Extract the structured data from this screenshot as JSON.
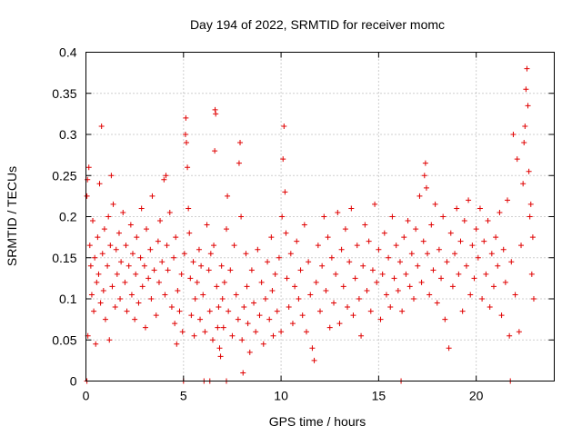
{
  "chart_data": {
    "type": "scatter",
    "title": "Day 194 of 2022, SRMTID for receiver momc",
    "xlabel": "GPS time / hours",
    "ylabel": "SRMTID / TECUs",
    "xlim": [
      0,
      24
    ],
    "ylim": [
      0,
      0.4
    ],
    "xticks": [
      0,
      5,
      10,
      15,
      20
    ],
    "xtick_labels": [
      "0",
      "5",
      "10",
      "15",
      "20"
    ],
    "yticks": [
      0,
      0.05,
      0.1,
      0.15,
      0.2,
      0.25,
      0.3,
      0.35,
      0.4
    ],
    "ytick_labels": [
      "0",
      "0.05",
      "0.1",
      "0.15",
      "0.2",
      "0.25",
      "0.3",
      "0.35",
      "0.4"
    ],
    "grid": true,
    "marker": "plus",
    "color": "#e00000",
    "points": [
      [
        0.05,
        0.225
      ],
      [
        0.08,
        0.245
      ],
      [
        0.1,
        0.055
      ],
      [
        0.15,
        0.26
      ],
      [
        0.2,
        0.165
      ],
      [
        0.25,
        0.14
      ],
      [
        0.3,
        0.105
      ],
      [
        0.35,
        0.195
      ],
      [
        0.4,
        0.085
      ],
      [
        0.45,
        0.15
      ],
      [
        0.5,
        0.045
      ],
      [
        0.55,
        0.12
      ],
      [
        0.6,
        0.175
      ],
      [
        0.65,
        0.13
      ],
      [
        0.7,
        0.24
      ],
      [
        0.75,
        0.095
      ],
      [
        0.8,
        0.31
      ],
      [
        0.85,
        0.155
      ],
      [
        0.9,
        0.11
      ],
      [
        0.95,
        0.185
      ],
      [
        1.0,
        0.075
      ],
      [
        1.1,
        0.14
      ],
      [
        1.15,
        0.2
      ],
      [
        1.2,
        0.05
      ],
      [
        1.25,
        0.165
      ],
      [
        1.3,
        0.25
      ],
      [
        1.35,
        0.115
      ],
      [
        1.4,
        0.215
      ],
      [
        1.5,
        0.09
      ],
      [
        1.55,
        0.16
      ],
      [
        1.6,
        0.13
      ],
      [
        1.7,
        0.18
      ],
      [
        1.75,
        0.1
      ],
      [
        1.8,
        0.145
      ],
      [
        1.9,
        0.205
      ],
      [
        2.0,
        0.12
      ],
      [
        2.05,
        0.165
      ],
      [
        2.1,
        0.085
      ],
      [
        2.2,
        0.14
      ],
      [
        2.3,
        0.19
      ],
      [
        2.35,
        0.105
      ],
      [
        2.4,
        0.155
      ],
      [
        2.5,
        0.075
      ],
      [
        2.55,
        0.13
      ],
      [
        2.6,
        0.175
      ],
      [
        2.7,
        0.095
      ],
      [
        2.8,
        0.15
      ],
      [
        2.85,
        0.21
      ],
      [
        2.9,
        0.115
      ],
      [
        3.0,
        0.14
      ],
      [
        3.05,
        0.065
      ],
      [
        3.1,
        0.185
      ],
      [
        3.2,
        0.125
      ],
      [
        3.3,
        0.16
      ],
      [
        3.35,
        0.1
      ],
      [
        3.4,
        0.225
      ],
      [
        3.5,
        0.135
      ],
      [
        3.6,
        0.08
      ],
      [
        3.7,
        0.17
      ],
      [
        3.75,
        0.12
      ],
      [
        3.8,
        0.195
      ],
      [
        3.9,
        0.145
      ],
      [
        4.0,
        0.245
      ],
      [
        4.05,
        0.105
      ],
      [
        4.1,
        0.25
      ],
      [
        4.15,
        0.165
      ],
      [
        4.2,
        0.135
      ],
      [
        4.3,
        0.205
      ],
      [
        4.4,
        0.09
      ],
      [
        4.5,
        0.15
      ],
      [
        4.55,
        0.07
      ],
      [
        4.6,
        0.175
      ],
      [
        4.65,
        0.045
      ],
      [
        4.7,
        0.11
      ],
      [
        4.8,
        0.085
      ],
      [
        4.9,
        0.13
      ],
      [
        4.95,
        0.06
      ],
      [
        5.05,
        0.155
      ],
      [
        5.1,
        0.3
      ],
      [
        5.12,
        0.32
      ],
      [
        5.15,
        0.29
      ],
      [
        5.2,
        0.26
      ],
      [
        5.25,
        0.21
      ],
      [
        5.3,
        0.18
      ],
      [
        5.35,
        0.125
      ],
      [
        5.4,
        0.08
      ],
      [
        5.5,
        0.145
      ],
      [
        5.55,
        0.055
      ],
      [
        5.6,
        0.1
      ],
      [
        5.7,
        0.12
      ],
      [
        5.8,
        0.16
      ],
      [
        5.85,
        0.075
      ],
      [
        5.9,
        0.14
      ],
      [
        6.0,
        0.105
      ],
      [
        6.1,
        0.06
      ],
      [
        6.2,
        0.19
      ],
      [
        6.3,
        0.135
      ],
      [
        6.35,
        0.085
      ],
      [
        6.4,
        0.155
      ],
      [
        6.5,
        0.05
      ],
      [
        6.55,
        0.165
      ],
      [
        6.6,
        0.28
      ],
      [
        6.62,
        0.33
      ],
      [
        6.65,
        0.325
      ],
      [
        6.7,
        0.115
      ],
      [
        6.75,
        0.065
      ],
      [
        6.8,
        0.09
      ],
      [
        6.85,
        0.04
      ],
      [
        6.9,
        0.03
      ],
      [
        6.95,
        0.14
      ],
      [
        7.0,
        0.1
      ],
      [
        7.05,
        0.065
      ],
      [
        7.1,
        0.12
      ],
      [
        7.2,
        0.185
      ],
      [
        7.25,
        0.225
      ],
      [
        7.3,
        0.085
      ],
      [
        7.4,
        0.135
      ],
      [
        7.5,
        0.055
      ],
      [
        7.6,
        0.165
      ],
      [
        7.7,
        0.105
      ],
      [
        7.8,
        0.075
      ],
      [
        7.85,
        0.265
      ],
      [
        7.9,
        0.29
      ],
      [
        7.95,
        0.2
      ],
      [
        8.0,
        0.05
      ],
      [
        8.05,
        0.01
      ],
      [
        8.1,
        0.09
      ],
      [
        8.2,
        0.155
      ],
      [
        8.25,
        0.115
      ],
      [
        8.3,
        0.07
      ],
      [
        8.4,
        0.035
      ],
      [
        8.5,
        0.135
      ],
      [
        8.6,
        0.095
      ],
      [
        8.7,
        0.06
      ],
      [
        8.8,
        0.16
      ],
      [
        8.9,
        0.08
      ],
      [
        9.0,
        0.12
      ],
      [
        9.1,
        0.045
      ],
      [
        9.2,
        0.1
      ],
      [
        9.3,
        0.145
      ],
      [
        9.4,
        0.075
      ],
      [
        9.5,
        0.175
      ],
      [
        9.55,
        0.11
      ],
      [
        9.6,
        0.055
      ],
      [
        9.7,
        0.13
      ],
      [
        9.8,
        0.085
      ],
      [
        9.9,
        0.15
      ],
      [
        10.0,
        0.06
      ],
      [
        10.05,
        0.2
      ],
      [
        10.1,
        0.27
      ],
      [
        10.15,
        0.31
      ],
      [
        10.2,
        0.23
      ],
      [
        10.25,
        0.18
      ],
      [
        10.3,
        0.125
      ],
      [
        10.4,
        0.09
      ],
      [
        10.5,
        0.155
      ],
      [
        10.6,
        0.07
      ],
      [
        10.7,
        0.115
      ],
      [
        10.8,
        0.17
      ],
      [
        10.9,
        0.1
      ],
      [
        11.0,
        0.135
      ],
      [
        11.1,
        0.08
      ],
      [
        11.2,
        0.19
      ],
      [
        11.3,
        0.06
      ],
      [
        11.4,
        0.145
      ],
      [
        11.5,
        0.105
      ],
      [
        11.6,
        0.04
      ],
      [
        11.7,
        0.025
      ],
      [
        11.8,
        0.12
      ],
      [
        11.9,
        0.165
      ],
      [
        12.0,
        0.085
      ],
      [
        12.1,
        0.14
      ],
      [
        12.2,
        0.2
      ],
      [
        12.3,
        0.11
      ],
      [
        12.4,
        0.175
      ],
      [
        12.5,
        0.065
      ],
      [
        12.6,
        0.15
      ],
      [
        12.7,
        0.095
      ],
      [
        12.8,
        0.13
      ],
      [
        12.9,
        0.205
      ],
      [
        13.0,
        0.07
      ],
      [
        13.1,
        0.16
      ],
      [
        13.2,
        0.115
      ],
      [
        13.3,
        0.185
      ],
      [
        13.4,
        0.09
      ],
      [
        13.5,
        0.145
      ],
      [
        13.6,
        0.21
      ],
      [
        13.7,
        0.08
      ],
      [
        13.8,
        0.125
      ],
      [
        13.9,
        0.165
      ],
      [
        14.0,
        0.1
      ],
      [
        14.1,
        0.055
      ],
      [
        14.2,
        0.14
      ],
      [
        14.3,
        0.19
      ],
      [
        14.4,
        0.11
      ],
      [
        14.5,
        0.17
      ],
      [
        14.6,
        0.085
      ],
      [
        14.7,
        0.135
      ],
      [
        14.8,
        0.215
      ],
      [
        14.9,
        0.12
      ],
      [
        15.0,
        0.16
      ],
      [
        15.1,
        0.075
      ],
      [
        15.2,
        0.13
      ],
      [
        15.3,
        0.18
      ],
      [
        15.4,
        0.105
      ],
      [
        15.5,
        0.15
      ],
      [
        15.6,
        0.09
      ],
      [
        15.7,
        0.2
      ],
      [
        15.8,
        0.125
      ],
      [
        15.9,
        0.165
      ],
      [
        16.0,
        0.11
      ],
      [
        16.1,
        0.145
      ],
      [
        16.2,
        0.085
      ],
      [
        16.3,
        0.175
      ],
      [
        16.4,
        0.13
      ],
      [
        16.5,
        0.195
      ],
      [
        16.6,
        0.115
      ],
      [
        16.7,
        0.155
      ],
      [
        16.8,
        0.1
      ],
      [
        16.9,
        0.185
      ],
      [
        17.0,
        0.14
      ],
      [
        17.1,
        0.225
      ],
      [
        17.2,
        0.12
      ],
      [
        17.3,
        0.17
      ],
      [
        17.35,
        0.25
      ],
      [
        17.4,
        0.265
      ],
      [
        17.45,
        0.235
      ],
      [
        17.5,
        0.155
      ],
      [
        17.6,
        0.105
      ],
      [
        17.7,
        0.19
      ],
      [
        17.8,
        0.135
      ],
      [
        17.9,
        0.215
      ],
      [
        18.0,
        0.095
      ],
      [
        18.1,
        0.16
      ],
      [
        18.2,
        0.125
      ],
      [
        18.3,
        0.2
      ],
      [
        18.4,
        0.075
      ],
      [
        18.5,
        0.145
      ],
      [
        18.6,
        0.04
      ],
      [
        18.7,
        0.18
      ],
      [
        18.8,
        0.115
      ],
      [
        18.9,
        0.155
      ],
      [
        19.0,
        0.21
      ],
      [
        19.1,
        0.13
      ],
      [
        19.2,
        0.17
      ],
      [
        19.3,
        0.085
      ],
      [
        19.4,
        0.195
      ],
      [
        19.5,
        0.14
      ],
      [
        19.6,
        0.22
      ],
      [
        19.7,
        0.105
      ],
      [
        19.8,
        0.165
      ],
      [
        19.9,
        0.125
      ],
      [
        20.0,
        0.185
      ],
      [
        20.1,
        0.15
      ],
      [
        20.2,
        0.21
      ],
      [
        20.3,
        0.1
      ],
      [
        20.4,
        0.17
      ],
      [
        20.5,
        0.13
      ],
      [
        20.6,
        0.195
      ],
      [
        20.7,
        0.09
      ],
      [
        20.8,
        0.155
      ],
      [
        20.9,
        0.115
      ],
      [
        21.0,
        0.175
      ],
      [
        21.1,
        0.14
      ],
      [
        21.2,
        0.205
      ],
      [
        21.3,
        0.08
      ],
      [
        21.4,
        0.16
      ],
      [
        21.5,
        0.12
      ],
      [
        21.6,
        0.22
      ],
      [
        21.7,
        0.055
      ],
      [
        21.8,
        0.145
      ],
      [
        21.9,
        0.3
      ],
      [
        22.0,
        0.105
      ],
      [
        22.1,
        0.27
      ],
      [
        22.2,
        0.06
      ],
      [
        22.3,
        0.165
      ],
      [
        22.4,
        0.24
      ],
      [
        22.45,
        0.29
      ],
      [
        22.5,
        0.31
      ],
      [
        22.55,
        0.355
      ],
      [
        22.6,
        0.38
      ],
      [
        22.65,
        0.335
      ],
      [
        22.7,
        0.255
      ],
      [
        22.75,
        0.2
      ],
      [
        22.8,
        0.215
      ],
      [
        22.85,
        0.13
      ],
      [
        22.9,
        0.175
      ],
      [
        22.95,
        0.1
      ]
    ],
    "zero_points": [
      0.05,
      5.0,
      6.05,
      6.35,
      7.2,
      16.15,
      21.75
    ]
  }
}
